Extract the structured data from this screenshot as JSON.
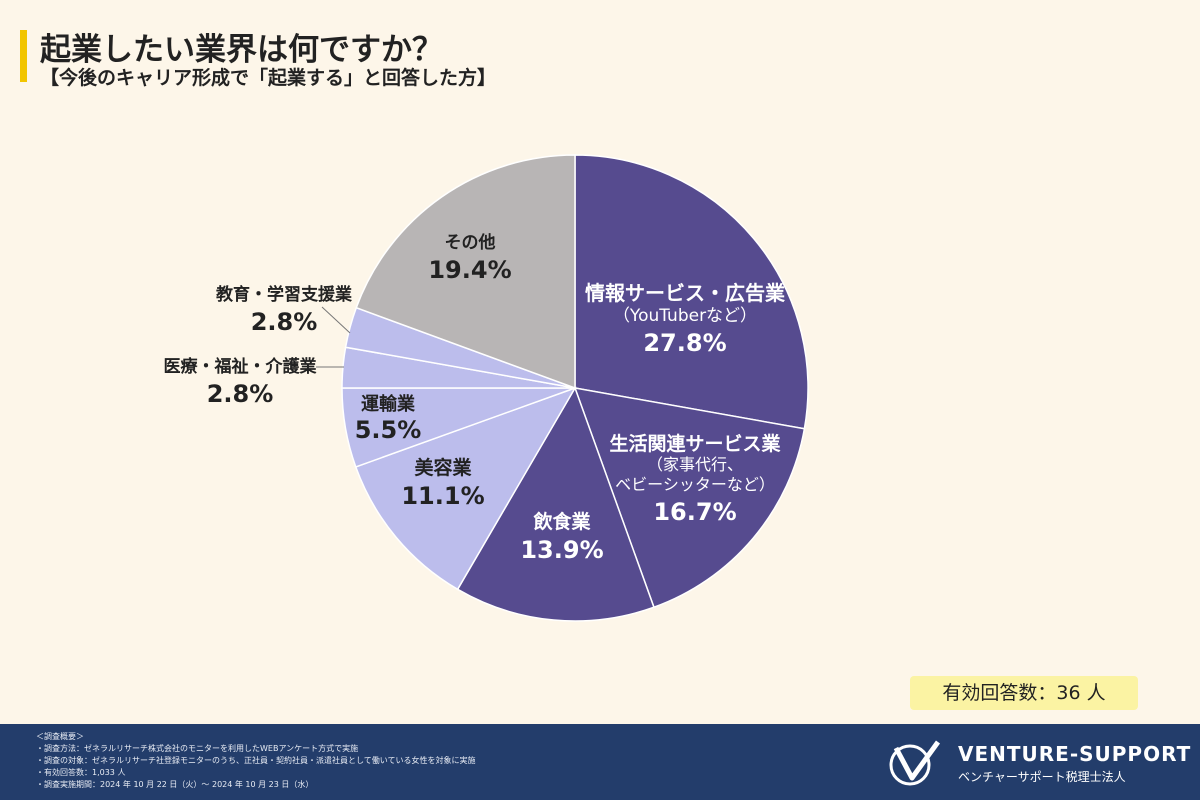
{
  "header": {
    "title": "起業したい業界は何ですか？",
    "subtitle": "【今後のキャリア形成で「起業する」と回答した方】"
  },
  "chart_data": {
    "type": "pie",
    "title": "起業したい業界は何ですか？",
    "subtitle": "【今後のキャリア形成で「起業する」と回答した方】",
    "unit": "%",
    "slices": [
      {
        "label": "情報サービス・広告業",
        "sublabel": "（YouTuberなど）",
        "value": 27.8,
        "display": "27.8%",
        "color": "#564b8f"
      },
      {
        "label": "生活関連サービス業",
        "sublabel": "（家事代行、|ベビーシッターなど）",
        "value": 16.7,
        "display": "16.7%",
        "color": "#564b8f"
      },
      {
        "label": "飲食業",
        "sublabel": "",
        "value": 13.9,
        "display": "13.9%",
        "color": "#564b8f"
      },
      {
        "label": "美容業",
        "sublabel": "",
        "value": 11.1,
        "display": "11.1%",
        "color": "#bcbdec"
      },
      {
        "label": "運輸業",
        "sublabel": "",
        "value": 5.5,
        "display": "5.5%",
        "color": "#bcbdec"
      },
      {
        "label": "医療・福祉・介護業",
        "sublabel": "",
        "value": 2.8,
        "display": "2.8%",
        "color": "#bcbdec"
      },
      {
        "label": "教育・学習支援業",
        "sublabel": "",
        "value": 2.8,
        "display": "2.8%",
        "color": "#bcbdec"
      },
      {
        "label": "その他",
        "sublabel": "",
        "value": 19.4,
        "display": "19.4%",
        "color": "#b8b5b5"
      }
    ]
  },
  "badge": {
    "text": "有効回答数：36 人"
  },
  "footer": {
    "notes": [
      "＜調査概要＞",
      "・調査方法：ゼネラルリサーチ株式会社のモニターを利用したWEBアンケート方式で実施",
      "・調査の対象：ゼネラルリサーチ社登録モニターのうち、正社員・契約社員・派遣社員として働いている女性を対象に実施",
      "・有効回答数：1,033 人",
      "・調査実施期間：2024 年 10 月 22 日（火）〜 2024 年 10 月 23 日（水）"
    ],
    "brand": "VENTURE-SUPPORT",
    "brand_sub": "ベンチャーサポート税理士法人"
  },
  "colors": {
    "background": "#fdf6e9",
    "accent": "#f2c500",
    "footer": "#233d6b"
  }
}
